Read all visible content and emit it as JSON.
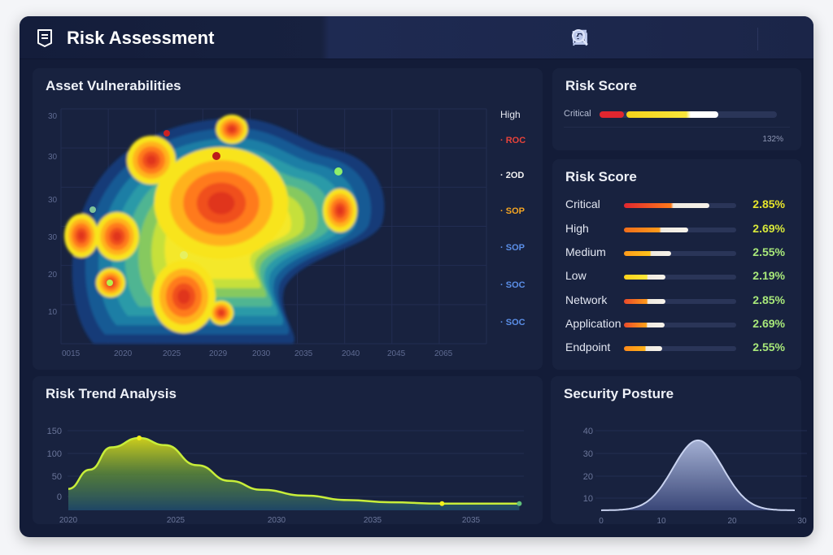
{
  "header": {
    "title": "Risk Assessment",
    "icons": [
      "document-icon",
      "nodes-icon",
      "clipboard-icon",
      "edit-icon",
      "link-icon",
      "user-icon",
      "search-icon"
    ]
  },
  "vulnerabilities": {
    "title": "Asset Vulnerabilities",
    "y_ticks": [
      "30",
      "30",
      "30",
      "30",
      "20",
      "10"
    ],
    "x_ticks": [
      "0015",
      "2020",
      "2025",
      "2029",
      "2030",
      "2035",
      "2040",
      "2045",
      "2065"
    ],
    "legend": [
      {
        "label": "High",
        "color": "#e6e9f2"
      },
      {
        "label": "ROC",
        "color": "#e8433a"
      },
      {
        "label": "2OD",
        "color": "#f2f2f2"
      },
      {
        "label": "SOP",
        "color": "#f5a623"
      },
      {
        "label": "SOP",
        "color": "#5b8fe8"
      },
      {
        "label": "SOC",
        "color": "#5b8fe8"
      },
      {
        "label": "SOC",
        "color": "#5b8fe8"
      }
    ]
  },
  "risk_score_summary": {
    "title": "Risk Score",
    "label": "Critical",
    "value": "132%",
    "fill": 0.52
  },
  "risk_score": {
    "title": "Risk Score",
    "rows": [
      {
        "label": "Critical",
        "value": "2.85%",
        "fill": 0.76,
        "from": "#e0262f",
        "to": "#ff7a1a",
        "color": "#e8e62a"
      },
      {
        "label": "High",
        "value": "2.69%",
        "fill": 0.57,
        "from": "#f06d1a",
        "to": "#ff9a1a",
        "color": "#d7e83a"
      },
      {
        "label": "Medium",
        "value": "2.55%",
        "fill": 0.42,
        "from": "#ff9a1a",
        "to": "#ffc21a",
        "color": "#a8e87a"
      },
      {
        "label": "Low",
        "value": "2.19%",
        "fill": 0.37,
        "from": "#ffd21a",
        "to": "#ffe83a",
        "color": "#a8e87a"
      },
      {
        "label": "Network",
        "value": "2.85%",
        "fill": 0.37,
        "from": "#ea4a2a",
        "to": "#ff9a1a",
        "color": "#a8e87a"
      },
      {
        "label": "Application",
        "value": "2.69%",
        "fill": 0.36,
        "from": "#ea4a2a",
        "to": "#ffa21a",
        "color": "#a8e87a"
      },
      {
        "label": "Endpoint",
        "value": "2.55%",
        "fill": 0.34,
        "from": "#ff8a1a",
        "to": "#ffb21a",
        "color": "#a8e87a"
      }
    ]
  },
  "chart_data": [
    {
      "type": "area",
      "title": "Risk Trend Analysis",
      "ylim": [
        -30,
        150
      ],
      "y_ticks": [
        "150",
        "100",
        "50",
        "0"
      ],
      "x_ticks": [
        "2020",
        "2025",
        "2030",
        "2035",
        "2035"
      ],
      "points": [
        [
          2020,
          17
        ],
        [
          2021,
          60
        ],
        [
          2022,
          110
        ],
        [
          2023.3,
          131
        ],
        [
          2024.5,
          115
        ],
        [
          2026,
          70
        ],
        [
          2027.5,
          35
        ],
        [
          2029,
          15
        ],
        [
          2031,
          2
        ],
        [
          2033,
          -8
        ],
        [
          2035,
          -13
        ],
        [
          2037.4,
          -16
        ],
        [
          2039,
          -16
        ],
        [
          2041,
          -16
        ]
      ],
      "markers": [
        [
          2023.3,
          131
        ],
        [
          2037.4,
          -16
        ],
        [
          2041,
          -16
        ]
      ]
    },
    {
      "type": "area",
      "title": "Security Posture",
      "ylim": [
        5,
        40
      ],
      "y_ticks": [
        "40",
        "30",
        "20",
        "10"
      ],
      "x_ticks": [
        "0",
        "10",
        "20",
        "30"
      ],
      "peak_x": 14,
      "peak_y": 35,
      "baseline": 5,
      "x_range": [
        0,
        28
      ]
    }
  ],
  "colors": {
    "background": "#131c38",
    "panel": "#18223f",
    "accent": "#e8e62a"
  }
}
